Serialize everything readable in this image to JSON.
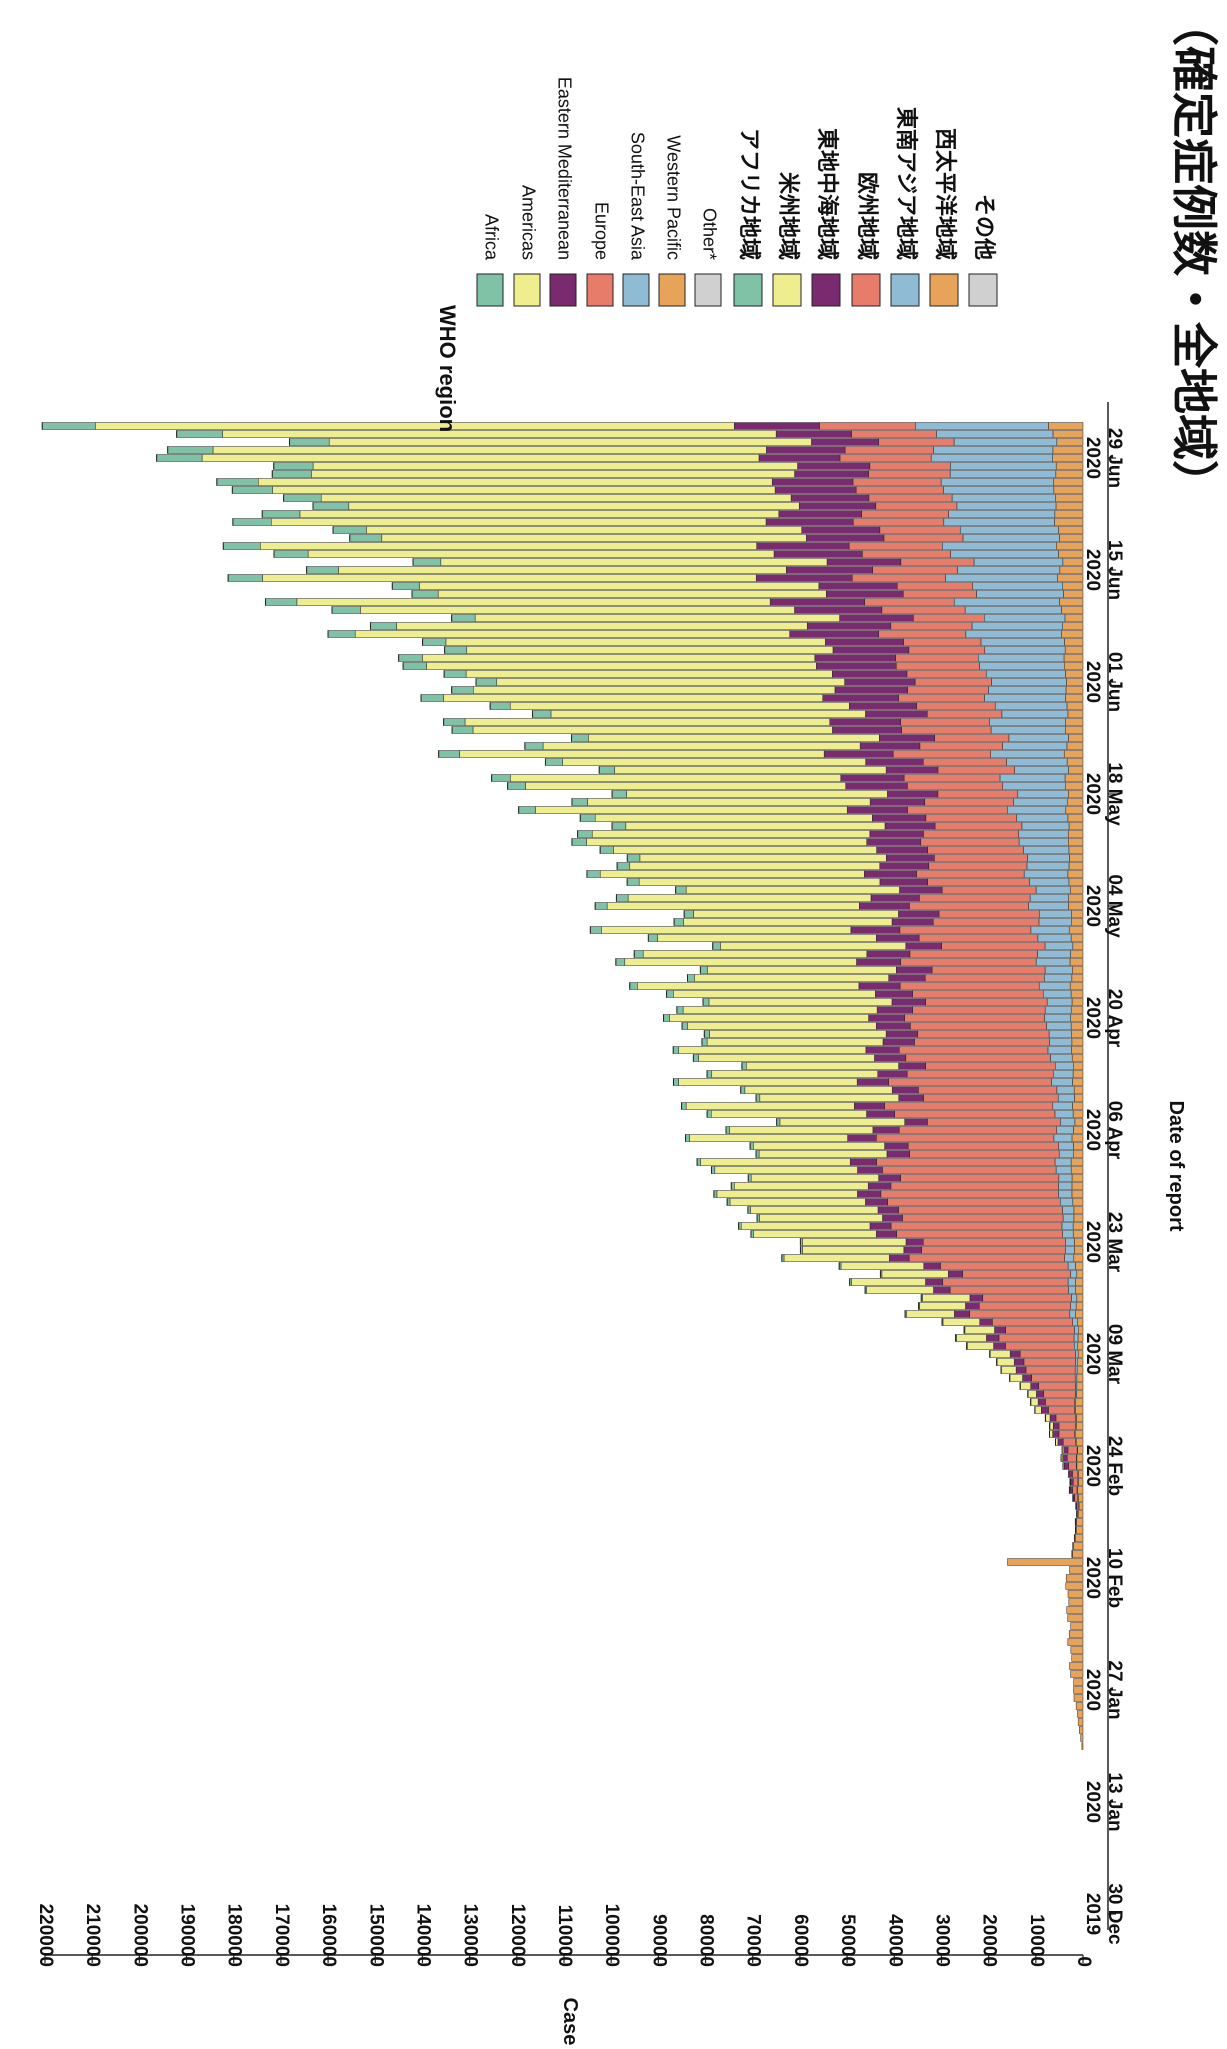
{
  "chart_data": {
    "type": "bar",
    "stacked": true,
    "orientation": "rotated-90",
    "title": "（確定症例数・全地域）",
    "xlabel": "Date of report",
    "ylabel": "Cases",
    "ylim": [
      0,
      220000
    ],
    "y_ticks": [
      0,
      10000,
      20000,
      30000,
      40000,
      50000,
      60000,
      70000,
      80000,
      90000,
      100000,
      110000,
      120000,
      130000,
      140000,
      150000,
      160000,
      170000,
      180000,
      190000,
      200000,
      210000,
      220000
    ],
    "x_ticks": [
      {
        "line1": "30 Dec",
        "line2": "2019"
      },
      {
        "line1": "13 Jan",
        "line2": "2020"
      },
      {
        "line1": "27 Jan",
        "line2": "2020"
      },
      {
        "line1": "10 Feb",
        "line2": "2020"
      },
      {
        "line1": "24 Feb",
        "line2": "2020"
      },
      {
        "line1": "09 Mar",
        "line2": "2020"
      },
      {
        "line1": "23 Mar",
        "line2": "2020"
      },
      {
        "line1": "06 Apr",
        "line2": "2020"
      },
      {
        "line1": "20 Apr",
        "line2": "2020"
      },
      {
        "line1": "04 May",
        "line2": "2020"
      },
      {
        "line1": "18 May",
        "line2": "2020"
      },
      {
        "line1": "01 Jun",
        "line2": "2020"
      },
      {
        "line1": "15 Jun",
        "line2": "2020"
      },
      {
        "line1": "29 Jun",
        "line2": "2020"
      }
    ],
    "start_date": "2019-12-30",
    "days": 187,
    "legend": {
      "title": "WHO region",
      "placement": "top-right",
      "entries_en": [
        "Africa",
        "Americas",
        "Eastern Mediterranean",
        "Europe",
        "South-East Asia",
        "Western Pacific",
        "Other*"
      ],
      "entries_ja": [
        "アフリカ地域",
        "米州地域",
        "東地中海地域",
        "欧州地域",
        "東南アジア地域",
        "西太平洋地域",
        "その他"
      ]
    },
    "series": [
      {
        "key": "wp",
        "name": "Western Pacific",
        "color": "#e8a35a"
      },
      {
        "key": "sea",
        "name": "South-East Asia",
        "color": "#8fbcd4"
      },
      {
        "key": "eu",
        "name": "Europe",
        "color": "#e87c6a"
      },
      {
        "key": "em",
        "name": "Eastern Mediterranean",
        "color": "#7a2a6e"
      },
      {
        "key": "am",
        "name": "Americas",
        "color": "#eeee8e"
      },
      {
        "key": "af",
        "name": "Africa",
        "color": "#7fc2a6"
      },
      {
        "key": "ot",
        "name": "Other*",
        "color": "#d0d0d0"
      }
    ],
    "anchors": {
      "note": "approximate per-region daily cases at key dates (days since 2019-12-30)",
      "day": [
        0,
        20,
        26,
        30,
        36,
        42,
        44,
        50,
        56,
        60,
        64,
        68,
        72,
        76,
        80,
        84,
        88,
        92,
        98,
        104,
        110,
        116,
        122,
        128,
        134,
        140,
        146,
        152,
        158,
        164,
        170,
        176,
        182,
        186
      ],
      "wp": [
        0,
        0,
        1500,
        2500,
        3000,
        3500,
        2500,
        1000,
        1200,
        1500,
        1500,
        1200,
        1000,
        1500,
        1500,
        2000,
        2000,
        2500,
        2000,
        2000,
        2500,
        2500,
        2500,
        3000,
        3000,
        3500,
        3500,
        3500,
        4000,
        4500,
        5000,
        6000,
        6000,
        6500
      ],
      "sea": [
        0,
        0,
        0,
        0,
        0,
        0,
        0,
        0,
        50,
        100,
        200,
        400,
        800,
        1200,
        1500,
        2000,
        2500,
        3000,
        3500,
        4000,
        5000,
        6000,
        7000,
        8000,
        10000,
        12000,
        14000,
        16000,
        18000,
        20000,
        22000,
        22000,
        24000,
        25000
      ],
      "eu": [
        0,
        0,
        0,
        0,
        0,
        0,
        0,
        200,
        1500,
        3000,
        6000,
        10000,
        15000,
        20000,
        26000,
        33000,
        36000,
        36000,
        33000,
        31000,
        29000,
        27000,
        25000,
        22000,
        20000,
        19000,
        18000,
        17000,
        17000,
        17000,
        18000,
        18000,
        18000,
        18000
      ],
      "em": [
        0,
        0,
        0,
        0,
        0,
        0,
        0,
        100,
        800,
        1200,
        1500,
        2000,
        2500,
        3000,
        3500,
        4000,
        4500,
        5000,
        5500,
        6000,
        7000,
        8000,
        9000,
        10000,
        11000,
        12000,
        13000,
        15000,
        17000,
        18000,
        18000,
        17000,
        16000,
        16000
      ],
      "am": [
        0,
        0,
        0,
        0,
        0,
        0,
        0,
        0,
        200,
        600,
        1500,
        3000,
        6000,
        10000,
        16000,
        24000,
        28000,
        29000,
        30000,
        34000,
        39000,
        43000,
        46000,
        50000,
        57000,
        62000,
        69000,
        75000,
        82000,
        90000,
        95000,
        100000,
        110000,
        120000
      ],
      "af": [
        0,
        0,
        0,
        0,
        0,
        0,
        0,
        0,
        0,
        0,
        50,
        100,
        200,
        300,
        400,
        500,
        600,
        700,
        800,
        1000,
        1200,
        1500,
        2000,
        2500,
        3000,
        3500,
        4000,
        4500,
        5000,
        6000,
        7000,
        8000,
        9000,
        10000
      ],
      "ot": [
        0,
        0,
        0,
        0,
        0,
        0,
        0,
        50,
        100,
        50,
        30,
        20,
        10,
        10,
        10,
        10,
        10,
        10,
        10,
        10,
        10,
        10,
        10,
        10,
        10,
        10,
        10,
        10,
        10,
        10,
        10,
        10,
        10,
        10
      ]
    }
  }
}
